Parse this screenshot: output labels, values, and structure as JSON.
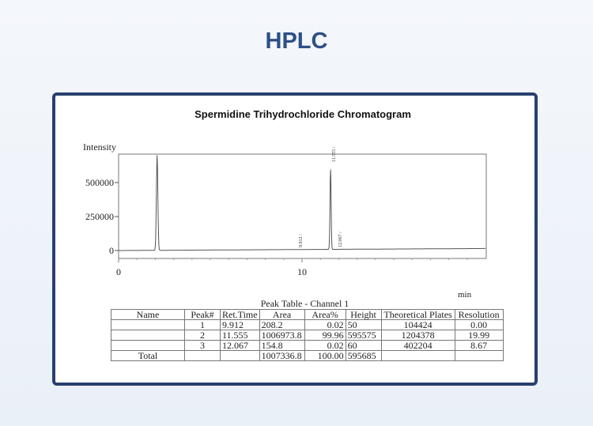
{
  "header": {
    "title": "HPLC"
  },
  "chart_data": {
    "type": "line",
    "title": "Spermidine Trihydrochloride Chromatogram",
    "ylabel": "Intensity",
    "xlabel": "min",
    "xlim": [
      0,
      20
    ],
    "ylim": [
      -80000,
      700000
    ],
    "xticks": [
      "0",
      "10"
    ],
    "yticks": [
      "0",
      "250000",
      "500000"
    ],
    "grid": false,
    "peaks": [
      {
        "time": 2.1,
        "height": 700000,
        "label": ""
      },
      {
        "time": 9.912,
        "height": 50,
        "label": "9.912 /"
      },
      {
        "time": 11.555,
        "height": 595575,
        "label": "11.555 /"
      },
      {
        "time": 12.067,
        "height": 60,
        "label": "12.067 /"
      }
    ],
    "baseline": [
      {
        "x": 0,
        "y": 0
      },
      {
        "x": 20,
        "y": 15000
      }
    ]
  },
  "table": {
    "title": "Peak Table - Channel 1",
    "headers": [
      "Name",
      "Peak#",
      "Ret.Time",
      "Area",
      "Area%",
      "Height",
      "Theoretical Plates",
      "Resolution"
    ],
    "rows": [
      [
        "",
        "1",
        "9.912",
        "208.2",
        "0.02",
        "50",
        "104424",
        "0.00"
      ],
      [
        "",
        "2",
        "11.555",
        "1006973.8",
        "99.96",
        "595575",
        "1204378",
        "19.99"
      ],
      [
        "",
        "3",
        "12.067",
        "154.8",
        "0.02",
        "60",
        "402204",
        "8.67"
      ],
      [
        "Total",
        "",
        "",
        "1007336.8",
        "100.00",
        "595685",
        "",
        ""
      ]
    ]
  }
}
